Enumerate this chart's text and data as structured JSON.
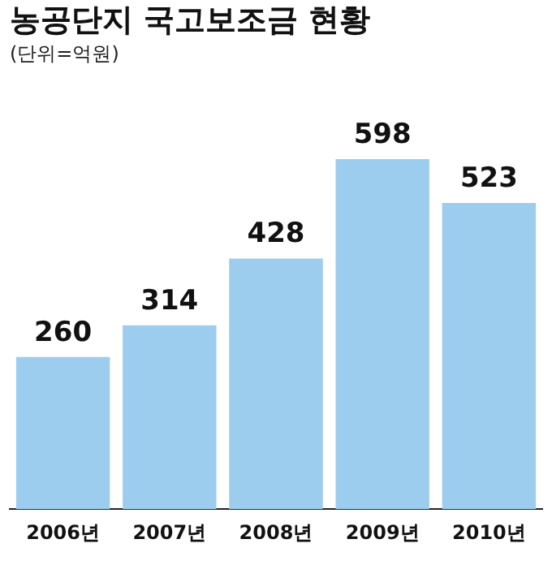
{
  "chart_data": {
    "type": "bar",
    "title": "농공단지 국고보조금 현황",
    "subtitle": "(단위=억원)",
    "categories": [
      "2006년",
      "2007년",
      "2008년",
      "2009년",
      "2010년"
    ],
    "values": [
      260,
      314,
      428,
      598,
      523
    ],
    "color": "#9dcdee",
    "data_labels": true,
    "grid": false,
    "legend": false,
    "tick_labels": "x"
  }
}
